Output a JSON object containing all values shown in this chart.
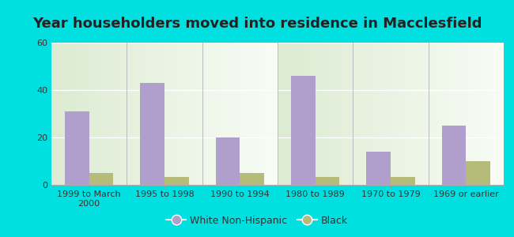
{
  "title": "Year householders moved into residence in Macclesfield",
  "categories": [
    "1999 to March\n2000",
    "1995 to 1998",
    "1990 to 1994",
    "1980 to 1989",
    "1970 to 1979",
    "1969 or earlier"
  ],
  "white_values": [
    31,
    43,
    20,
    46,
    14,
    25
  ],
  "black_values": [
    5,
    3.5,
    5,
    3.5,
    3.5,
    10
  ],
  "white_color": "#b09fcc",
  "black_color": "#b5bc7a",
  "background_outer": "#00e0e0",
  "background_inner": "#e8f0e2",
  "ylim": [
    0,
    60
  ],
  "yticks": [
    0,
    20,
    40,
    60
  ],
  "bar_width": 0.32,
  "legend_labels": [
    "White Non-Hispanic",
    "Black"
  ],
  "title_fontsize": 13,
  "tick_fontsize": 8,
  "legend_fontsize": 9,
  "figsize": [
    6.5,
    3.0
  ],
  "dpi": 100
}
